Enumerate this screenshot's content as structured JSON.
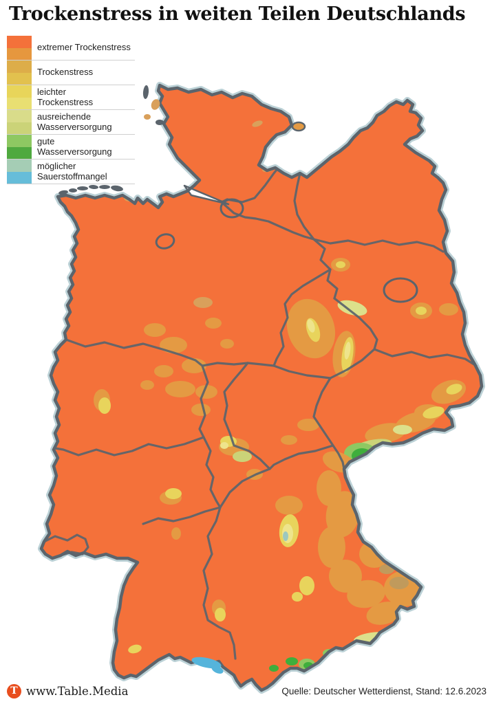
{
  "title": "Trockenstress in weiten Teilen Deutschlands",
  "legend": {
    "items": [
      {
        "label": [
          "extremer Trockenstress"
        ],
        "colors": [
          "#F4713A",
          "#E6973E"
        ]
      },
      {
        "label": [
          "Trockenstress"
        ],
        "colors": [
          "#DDAD49",
          "#E2C14E"
        ]
      },
      {
        "label": [
          "leichter",
          "Trockenstress"
        ],
        "colors": [
          "#E8D55A",
          "#E9DF72"
        ]
      },
      {
        "label": [
          "ausreichende",
          "Wasserversorgung"
        ],
        "colors": [
          "#D9DC8A",
          "#CBD378"
        ]
      },
      {
        "label": [
          "gute",
          "Wasserversorgung"
        ],
        "colors": [
          "#8EC862",
          "#4FA93F"
        ]
      },
      {
        "label": [
          "möglicher",
          "Sauerstoffmangel"
        ],
        "colors": [
          "#A5CDB5",
          "#66BDD9"
        ]
      }
    ]
  },
  "map": {
    "colors": {
      "extreme": "#F4713A",
      "stress": "#E49A43",
      "light_stress": "#E8D45C",
      "pale": "#EEE48C",
      "adequate": "#DCE08B",
      "olive": "#CBD378",
      "good_light": "#8EC862",
      "good": "#3FAE3C",
      "oxygen": "#9CC8BE",
      "lake": "#55B4DB",
      "brown": "#C09A5C",
      "tan": "#D9A05B",
      "border": "#5B646C",
      "halo": "#AFC9CF",
      "sea": "#FFFFFF"
    }
  },
  "footer": {
    "logo_letter": "T",
    "logo_color": "#E84E1E",
    "brand": "www.Table.Media",
    "source": "Quelle: Deutscher Wetterdienst, Stand: 12.6.2023"
  }
}
